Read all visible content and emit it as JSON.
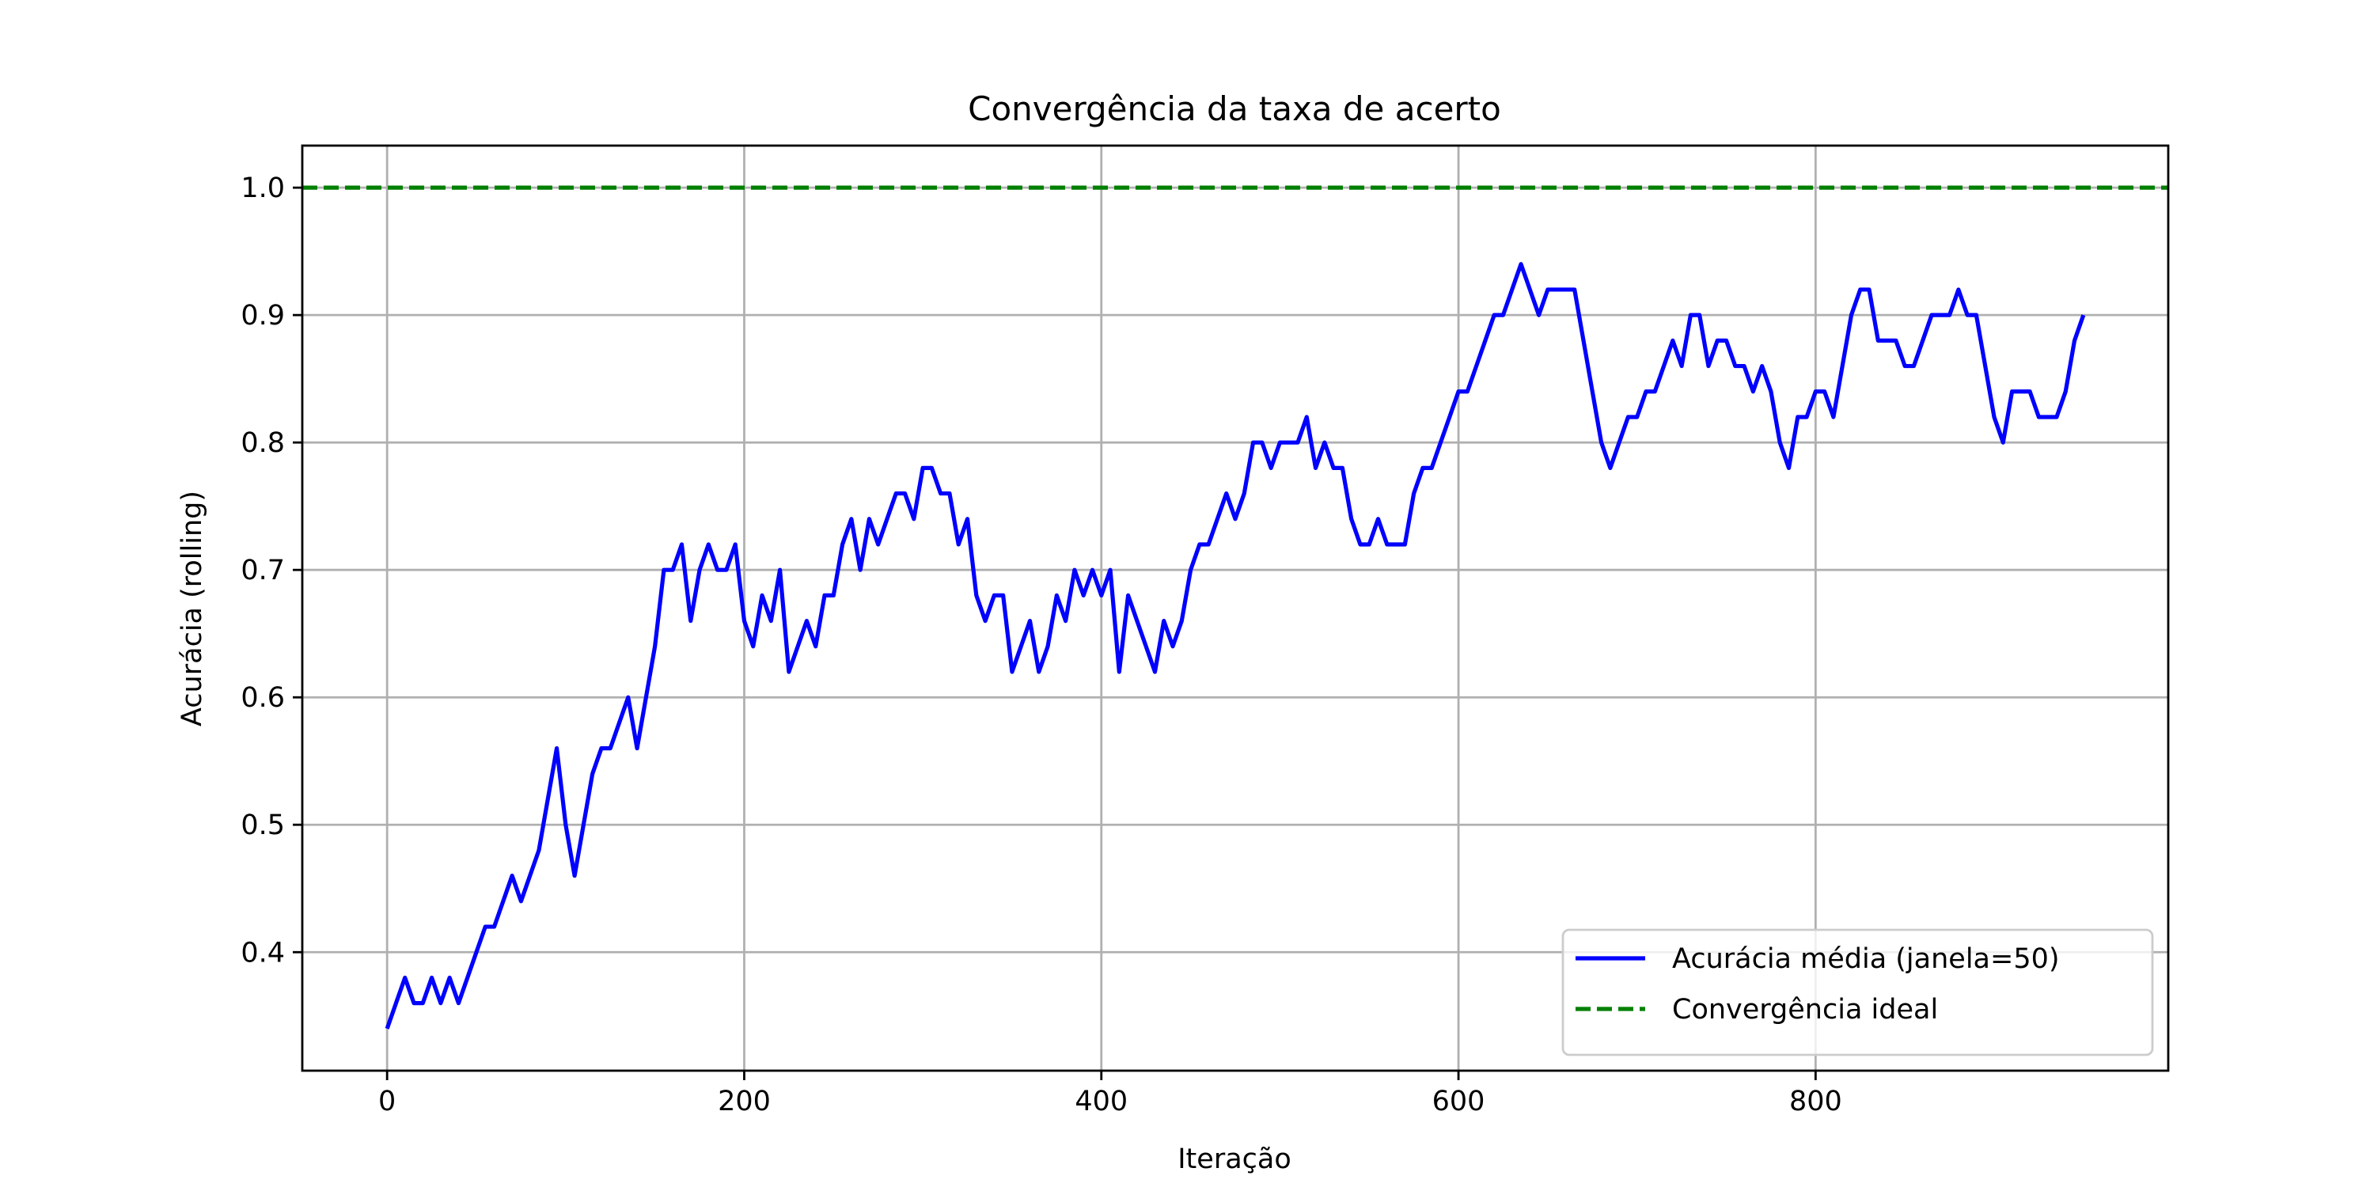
{
  "chart_data": {
    "type": "line",
    "title": "Convergência da taxa de acerto",
    "xlabel": "Iteração",
    "ylabel": "Acurácia (rolling)",
    "x": [
      0,
      5,
      10,
      15,
      20,
      25,
      30,
      35,
      40,
      45,
      50,
      55,
      60,
      65,
      70,
      75,
      80,
      85,
      90,
      95,
      100,
      105,
      110,
      115,
      120,
      125,
      130,
      135,
      140,
      145,
      150,
      155,
      160,
      165,
      170,
      175,
      180,
      185,
      190,
      195,
      200,
      205,
      210,
      215,
      220,
      225,
      230,
      235,
      240,
      245,
      250,
      255,
      260,
      265,
      270,
      275,
      280,
      285,
      290,
      295,
      300,
      305,
      310,
      315,
      320,
      325,
      330,
      335,
      340,
      345,
      350,
      355,
      360,
      365,
      370,
      375,
      380,
      385,
      390,
      395,
      400,
      405,
      410,
      415,
      420,
      425,
      430,
      435,
      440,
      445,
      450,
      455,
      460,
      465,
      470,
      475,
      480,
      485,
      490,
      495,
      500,
      505,
      510,
      515,
      520,
      525,
      530,
      535,
      540,
      545,
      550,
      555,
      560,
      565,
      570,
      575,
      580,
      585,
      590,
      595,
      600,
      605,
      610,
      615,
      620,
      625,
      630,
      635,
      640,
      645,
      650,
      655,
      660,
      665,
      670,
      675,
      680,
      685,
      690,
      695,
      700,
      705,
      710,
      715,
      720,
      725,
      730,
      735,
      740,
      745,
      750,
      755,
      760,
      765,
      770,
      775,
      780,
      785,
      790,
      795,
      800,
      805,
      810,
      815,
      820,
      825,
      830,
      835,
      840,
      845,
      850,
      855,
      860,
      865,
      870,
      875,
      880,
      885,
      890,
      895,
      900,
      905,
      910,
      915,
      920,
      925,
      930,
      935,
      940,
      945,
      950
    ],
    "series": [
      {
        "name": "Acurácia média (janela=50)",
        "color": "#0000ff",
        "style": "solid",
        "values": [
          0.34,
          0.36,
          0.38,
          0.36,
          0.36,
          0.38,
          0.36,
          0.38,
          0.36,
          0.38,
          0.4,
          0.42,
          0.42,
          0.44,
          0.46,
          0.44,
          0.46,
          0.48,
          0.52,
          0.56,
          0.5,
          0.46,
          0.5,
          0.54,
          0.56,
          0.56,
          0.58,
          0.6,
          0.56,
          0.6,
          0.64,
          0.7,
          0.7,
          0.72,
          0.66,
          0.7,
          0.72,
          0.7,
          0.7,
          0.72,
          0.66,
          0.64,
          0.68,
          0.66,
          0.7,
          0.62,
          0.64,
          0.66,
          0.64,
          0.68,
          0.68,
          0.72,
          0.74,
          0.7,
          0.74,
          0.72,
          0.74,
          0.76,
          0.76,
          0.74,
          0.78,
          0.78,
          0.76,
          0.76,
          0.72,
          0.74,
          0.68,
          0.66,
          0.68,
          0.68,
          0.62,
          0.64,
          0.66,
          0.62,
          0.64,
          0.68,
          0.66,
          0.7,
          0.68,
          0.7,
          0.68,
          0.7,
          0.62,
          0.68,
          0.66,
          0.64,
          0.62,
          0.66,
          0.64,
          0.66,
          0.7,
          0.72,
          0.72,
          0.74,
          0.76,
          0.74,
          0.76,
          0.8,
          0.8,
          0.78,
          0.8,
          0.8,
          0.8,
          0.82,
          0.78,
          0.8,
          0.78,
          0.78,
          0.74,
          0.72,
          0.72,
          0.74,
          0.72,
          0.72,
          0.72,
          0.76,
          0.78,
          0.78,
          0.8,
          0.82,
          0.84,
          0.84,
          0.86,
          0.88,
          0.9,
          0.9,
          0.92,
          0.94,
          0.92,
          0.9,
          0.92,
          0.92,
          0.92,
          0.92,
          0.88,
          0.84,
          0.8,
          0.78,
          0.8,
          0.82,
          0.82,
          0.84,
          0.84,
          0.86,
          0.88,
          0.86,
          0.9,
          0.9,
          0.86,
          0.88,
          0.88,
          0.86,
          0.86,
          0.84,
          0.86,
          0.84,
          0.8,
          0.78,
          0.82,
          0.82,
          0.84,
          0.84,
          0.82,
          0.86,
          0.9,
          0.92,
          0.92,
          0.88,
          0.88,
          0.88,
          0.86,
          0.86,
          0.88,
          0.9,
          0.9,
          0.9,
          0.92,
          0.9,
          0.9,
          0.86,
          0.82,
          0.8,
          0.84,
          0.84,
          0.84,
          0.82,
          0.82,
          0.82,
          0.84,
          0.88,
          0.9
        ]
      }
    ],
    "reference_lines": [
      {
        "name": "Convergência ideal",
        "color": "#008000",
        "style": "dashed",
        "value": 1
      }
    ],
    "xlim": [
      -47.5,
      997.5
    ],
    "xticks": [
      0,
      200,
      400,
      600,
      800
    ],
    "ylim": [
      0.307,
      1.033
    ],
    "yticks": [
      0.4,
      0.5,
      0.6,
      0.7,
      0.8,
      0.9,
      {
        "value": 1,
        "label": "1.0"
      }
    ],
    "grid": true,
    "legend": "lower right"
  }
}
